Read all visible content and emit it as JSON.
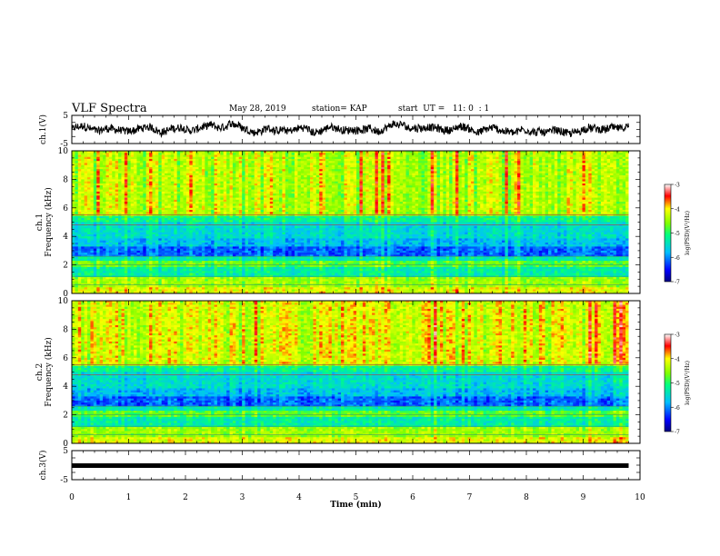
{
  "header": {
    "title": "VLF Spectra",
    "date": "May 28, 2019",
    "station": "station= KAP",
    "start_ut": "start  UT =   11: 0  : 1"
  },
  "chart_data": [
    {
      "type": "line",
      "panel": "ch1-waveform",
      "ylabel": "ch.1(V)",
      "ylim": [
        -5,
        5
      ],
      "yticks": [
        "5",
        "-5"
      ],
      "xlim": [
        0,
        10
      ],
      "data_extent_min": [
        0,
        9.8
      ],
      "trace": "noisy waveform with amplitude ~ ±2.5 V"
    },
    {
      "type": "heatmap",
      "panel": "ch1-spectrogram",
      "ylabel": "ch.1 Frequency (kHz)",
      "ylim": [
        0,
        10
      ],
      "yticks": [
        "0",
        "2",
        "4",
        "6",
        "8",
        "10"
      ],
      "xlim": [
        0,
        10
      ],
      "colorbar": {
        "label": "log(PSD)(V²/Hz)",
        "range": [
          -7,
          -3
        ],
        "ticks": [
          "-3",
          "-4",
          "-5",
          "-6",
          "-7"
        ]
      }
    },
    {
      "type": "heatmap",
      "panel": "ch2-spectrogram",
      "ylabel": "ch.2 Frequency (kHz)",
      "ylim": [
        0,
        10
      ],
      "yticks": [
        "0",
        "2",
        "4",
        "6",
        "8",
        "10"
      ],
      "xlim": [
        0,
        10
      ],
      "colorbar": {
        "label": "log(PSD)(V²/Hz)",
        "range": [
          -7,
          -3
        ],
        "ticks": [
          "-3",
          "-4",
          "-5",
          "-6",
          "-7"
        ]
      }
    },
    {
      "type": "line",
      "panel": "ch3-waveform",
      "ylabel": "ch.3(V)",
      "ylim": [
        -5,
        5
      ],
      "yticks": [
        "5",
        "-5"
      ],
      "xlim": [
        0,
        10
      ],
      "constant_value": 0,
      "trace": "flat line near 0 V"
    }
  ],
  "xaxis": {
    "label": "Time  (min)",
    "ticks": [
      "0",
      "1",
      "2",
      "3",
      "4",
      "5",
      "6",
      "7",
      "8",
      "9",
      "10"
    ]
  },
  "colors": {
    "spectro_low": "#0000ff",
    "spectro_mid": "#00ff00",
    "spectro_high": "#ff0000"
  }
}
